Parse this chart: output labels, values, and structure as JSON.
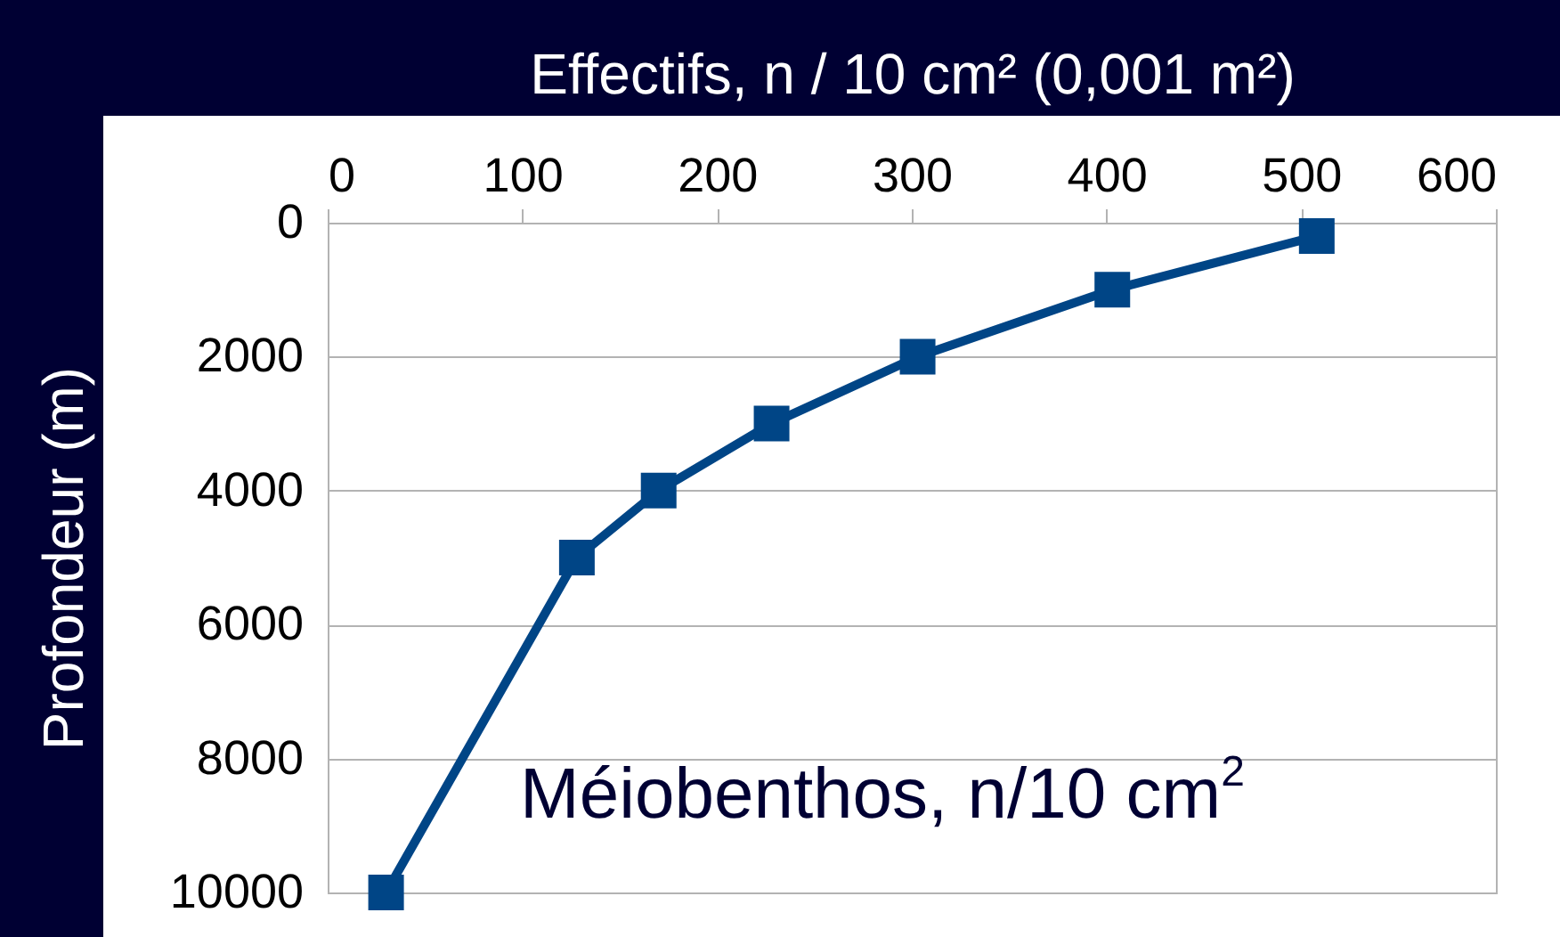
{
  "chart_data": {
    "type": "line",
    "xlabel": "Effectifs, n / 10 cm² (0,001 m²)",
    "ylabel": "Profondeur (m)",
    "annotations": [
      "Méiobenthos, n/10 cm$^{2}$"
    ],
    "x": [
      30,
      128,
      170,
      228,
      303,
      403,
      508
    ],
    "series": [
      {
        "color": "#004586",
        "values": [
          10000,
          5000,
          4000,
          3000,
          2000,
          1000,
          200
        ]
      }
    ],
    "xlim": [
      0,
      600
    ],
    "xticks": [
      0,
      100,
      200,
      300,
      400,
      500,
      600
    ],
    "ylim": [
      10000,
      0
    ],
    "yticks": [
      0,
      2000,
      4000,
      6000,
      8000,
      10000
    ],
    "grid": "y",
    "marker": "square",
    "line_style": "solid",
    "legend": false
  }
}
